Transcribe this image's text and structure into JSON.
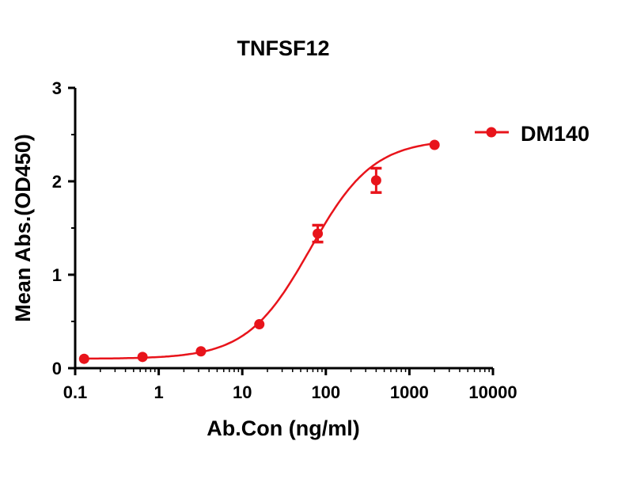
{
  "chart_data": {
    "type": "scatter",
    "title": "TNFSF12",
    "xlabel": "Ab.Con (ng/ml)",
    "ylabel": "Mean Abs.(OD450)",
    "xscale": "log",
    "xlim": [
      0.1,
      10000
    ],
    "ylim": [
      0,
      3
    ],
    "xticks": [
      0.1,
      1,
      10,
      100,
      1000,
      10000
    ],
    "xtick_labels": [
      "0.1",
      "1",
      "10",
      "100",
      "1000",
      "10000"
    ],
    "yticks": [
      0,
      1,
      2,
      3
    ],
    "ytick_labels": [
      "0",
      "1",
      "2",
      "3"
    ],
    "grid": false,
    "legend_position": "top-right",
    "series": [
      {
        "name": "DM140",
        "color": "#e8141b",
        "x": [
          0.128,
          0.64,
          3.2,
          16,
          80,
          400,
          2000
        ],
        "y": [
          0.1,
          0.12,
          0.18,
          0.47,
          1.44,
          2.01,
          2.39
        ],
        "error": [
          0,
          0,
          0,
          0,
          0.09,
          0.13,
          0
        ],
        "fit": {
          "model": "4PL",
          "bottom": 0.1,
          "top": 2.45,
          "ec50": 65,
          "hill": 1.15
        }
      }
    ]
  }
}
